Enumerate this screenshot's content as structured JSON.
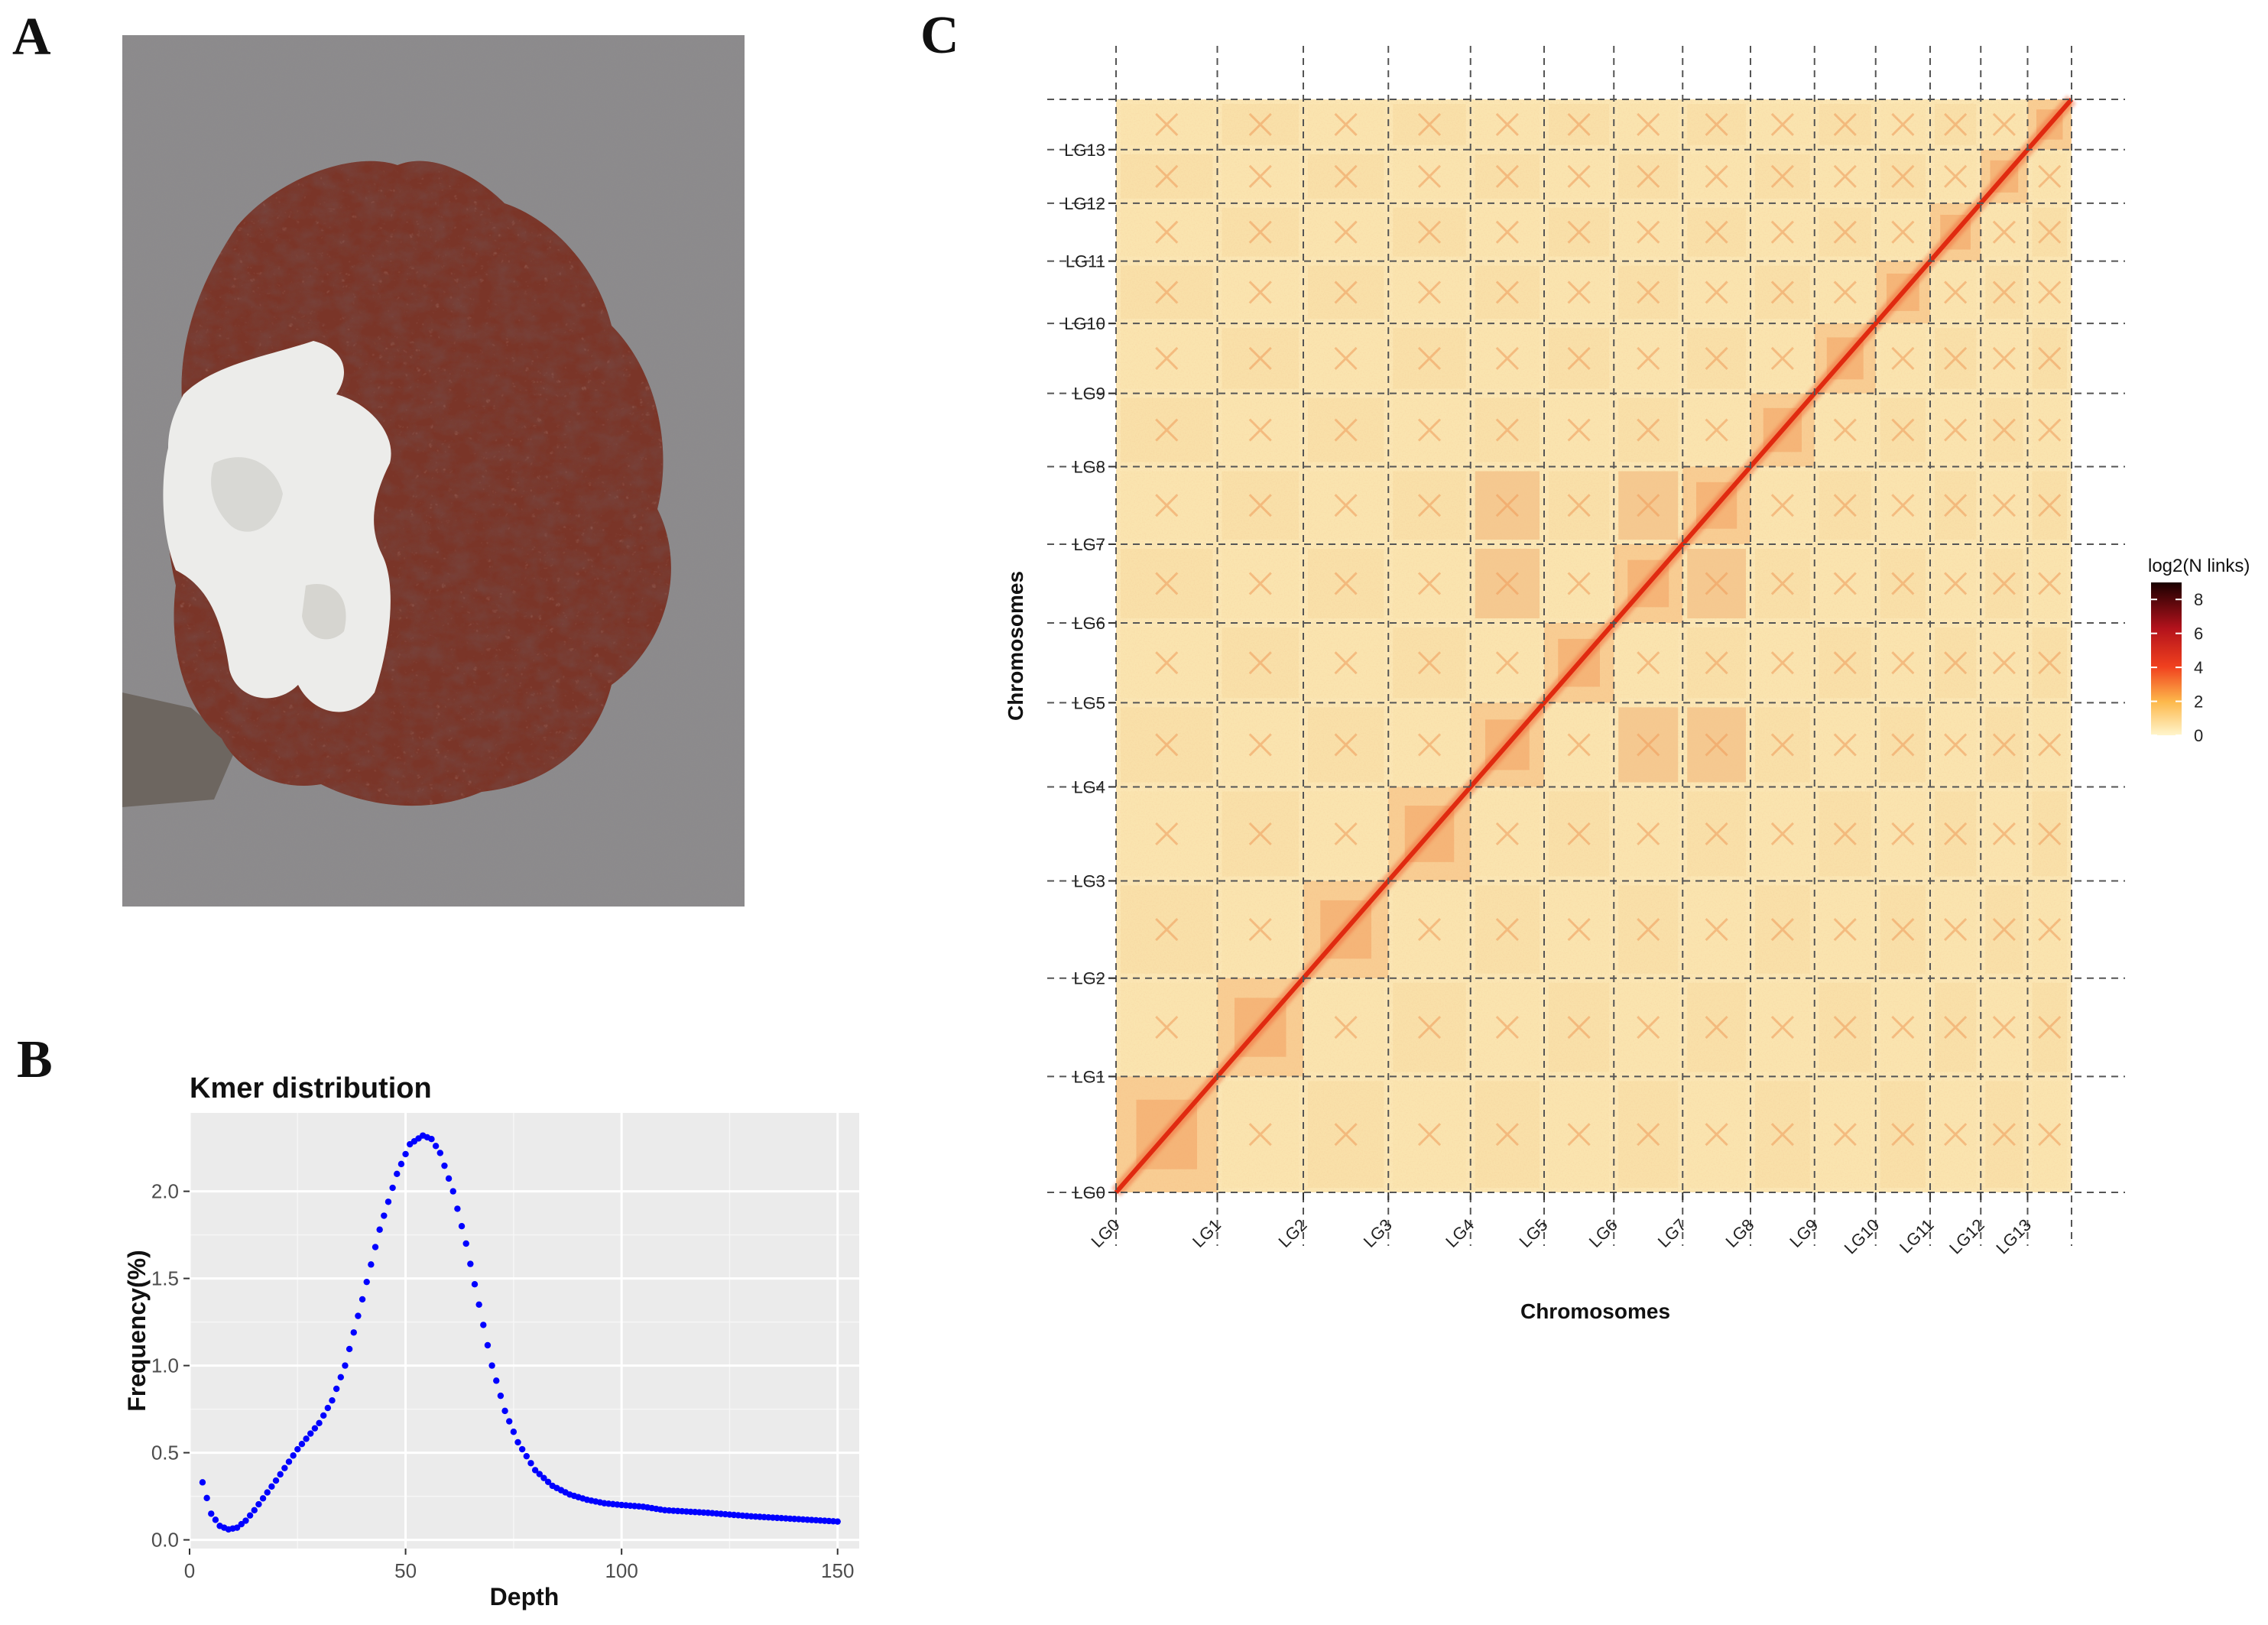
{
  "panels": {
    "a": {
      "letter": "A"
    },
    "b": {
      "letter": "B"
    },
    "c": {
      "letter": "C"
    }
  },
  "colors": {
    "plot_background": "#ebebeb",
    "kmer_points": "#0000ff",
    "heatmap_background": "#fbe7b4",
    "heatmap_diagonal": "#e02a10",
    "legend_low": "#fff5cc",
    "legend_high": "#1a0000"
  },
  "chart_data": [
    {
      "type": "scatter",
      "title": "Kmer distribution",
      "xlabel": "Depth",
      "ylabel": "Frequency(%)",
      "xlim": [
        0,
        155
      ],
      "ylim": [
        -0.05,
        2.45
      ],
      "xticks": [
        0,
        50,
        100,
        150
      ],
      "yticks": [
        0.0,
        0.5,
        1.0,
        1.5,
        2.0
      ],
      "xtick_labels": [
        "0",
        "50",
        "100",
        "150"
      ],
      "ytick_labels": [
        "0.0",
        "0.5",
        "1.0",
        "1.5",
        "2.0"
      ],
      "grid": true,
      "series": [
        {
          "x": [
            3,
            5,
            7,
            9,
            11,
            13,
            15,
            20,
            25,
            30,
            33,
            36,
            40,
            44,
            48,
            51,
            54,
            56,
            58,
            61,
            64,
            67,
            70,
            73,
            76,
            80,
            84,
            88,
            92,
            96,
            100,
            105,
            110,
            120,
            130,
            140,
            150
          ],
          "y": [
            0.33,
            0.15,
            0.08,
            0.06,
            0.07,
            0.11,
            0.17,
            0.34,
            0.52,
            0.67,
            0.8,
            1.0,
            1.38,
            1.78,
            2.1,
            2.27,
            2.32,
            2.3,
            2.22,
            2.0,
            1.7,
            1.35,
            1.0,
            0.74,
            0.56,
            0.4,
            0.31,
            0.26,
            0.23,
            0.21,
            0.2,
            0.19,
            0.17,
            0.155,
            0.135,
            0.12,
            0.105
          ]
        }
      ]
    },
    {
      "type": "heatmap",
      "xlabel": "Chromosomes",
      "ylabel": "Chromosomes",
      "categories": [
        "LG0",
        "LG1",
        "LG2",
        "LG3",
        "LG4",
        "LG5",
        "LG6",
        "LG7",
        "LG8",
        "LG9",
        "LG10",
        "LG11",
        "LG12",
        "LG13"
      ],
      "boundaries": [
        0,
        0.106,
        0.196,
        0.285,
        0.371,
        0.448,
        0.521,
        0.593,
        0.664,
        0.731,
        0.795,
        0.852,
        0.905,
        0.954,
        1.0
      ],
      "legend": {
        "title": "log2(N links)",
        "ticks": [
          "8",
          "6",
          "4",
          "2",
          "0"
        ],
        "tick_values": [
          8,
          6,
          4,
          2,
          0
        ],
        "range": [
          0,
          9
        ],
        "placement": "right"
      }
    }
  ]
}
